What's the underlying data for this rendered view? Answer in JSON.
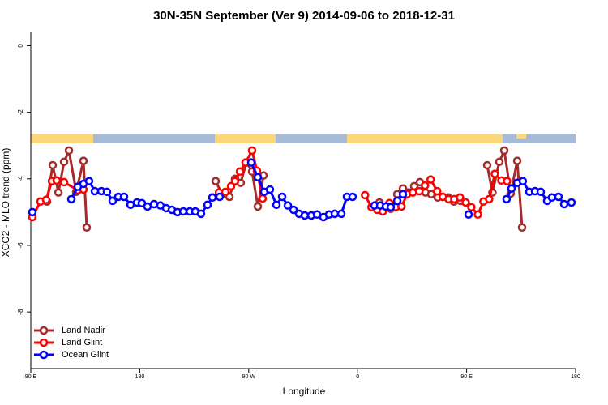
{
  "chart_data": {
    "type": "line",
    "title": "30N-35N September (Ver 9)   2014-09-06 to 2018-12-31",
    "x_label": "Longitude",
    "y_label": "XCO2 - MLO trend (ppm)",
    "xlim": [
      90,
      540
    ],
    "xticks": [
      {
        "value": 90,
        "label": "90 E"
      },
      {
        "value": 180,
        "label": "180"
      },
      {
        "value": 270,
        "label": "90 W"
      },
      {
        "value": 360,
        "label": "0"
      },
      {
        "value": 450,
        "label": "90 E"
      },
      {
        "value": 540,
        "label": "180"
      }
    ],
    "ylim": [
      -9.7,
      0.4
    ],
    "yticks": [
      0,
      -2,
      -4,
      -6,
      -8
    ],
    "legend": "bottom-left",
    "series": [
      {
        "name": "Land Nadir",
        "color": "#a52a2a",
        "x": [
          103.4,
          108.1,
          112.8,
          117.5,
          121.5,
          127.5,
          133.5,
          136.2,
          null,
          242.7,
          248.0,
          254.1,
          258.7,
          263.4,
          268.1,
          272.8,
          277.5,
          282.2,
          null,
          378.0,
          382.7,
          387.3,
          392.7,
          397.4,
          402.0,
          406.7,
          411.4,
          416.1,
          420.8,
          426.1,
          430.2,
          434.8,
          439.5,
          444.9,
          null,
          467.0,
          471.3,
          477.0,
          481.1,
          486.4,
          491.8,
          495.8
        ],
        "values": [
          -4.68,
          -3.59,
          -4.41,
          -3.49,
          -3.15,
          -4.39,
          -3.46,
          -5.46,
          null,
          -4.07,
          -4.46,
          -4.54,
          -4.0,
          -4.12,
          -3.51,
          -3.78,
          -4.83,
          -3.9,
          null,
          -4.71,
          -4.88,
          -4.9,
          -4.46,
          -4.29,
          -4.41,
          -4.22,
          -4.1,
          -4.41,
          -4.46,
          -4.56,
          -4.54,
          -4.56,
          -4.68,
          -4.66,
          null,
          -3.59,
          -4.41,
          -3.49,
          -3.15,
          -4.44,
          -3.46,
          -5.46
        ]
      },
      {
        "name": "Land Glint",
        "color": "#ff0000",
        "x": [
          91.3,
          98.0,
          102.7,
          107.4,
          111.4,
          117.5,
          128.8,
          133.5,
          null,
          240.0,
          245.4,
          250.7,
          255.4,
          258.7,
          262.8,
          267.4,
          272.8,
          276.8,
          281.5,
          null,
          366.1,
          371.4,
          376.1,
          380.8,
          386.2,
          391.5,
          396.2,
          400.9,
          405.6,
          410.9,
          415.6,
          420.3,
          425.7,
          430.4,
          435.1,
          439.8,
          444.5,
          449.2,
          453.9,
          459.3,
          463.9,
          468.6,
          473.3,
          478.7,
          483.4
        ],
        "values": [
          -5.15,
          -4.68,
          -4.63,
          -4.07,
          -4.05,
          -4.1,
          -4.34,
          -4.32,
          null,
          -4.56,
          -4.41,
          -4.39,
          -4.22,
          -4.07,
          -3.78,
          -3.51,
          -3.15,
          -3.76,
          -4.59,
          null,
          -4.49,
          -4.85,
          -4.93,
          -4.98,
          -4.73,
          -4.85,
          -4.83,
          -4.46,
          -4.41,
          -4.37,
          -4.2,
          -4.02,
          -4.37,
          -4.54,
          -4.61,
          -4.61,
          -4.56,
          -4.71,
          -4.85,
          -5.07,
          -4.68,
          -4.61,
          -3.85,
          -4.05,
          -4.07
        ]
      },
      {
        "name": "Ocean Glint",
        "color": "#0000ff",
        "x": [
          91.3,
          null,
          123.5,
          128.8,
          133.5,
          138.2,
          142.9,
          148.3,
          152.9,
          157.6,
          162.3,
          167.0,
          172.4,
          177.7,
          181.7,
          186.4,
          191.8,
          197.1,
          201.8,
          206.5,
          211.2,
          215.9,
          221.3,
          225.9,
          230.6,
          236.0,
          240.0,
          246.0,
          null,
          272.1,
          277.5,
          282.8,
          287.5,
          292.9,
          297.6,
          302.3,
          307.0,
          311.6,
          316.3,
          321.7,
          326.4,
          331.7,
          336.4,
          341.1,
          346.5,
          351.1,
          355.8,
          null,
          373.9,
          378.6,
          383.3,
          387.3,
          392.7,
          397.4,
          null,
          451.6,
          null,
          483.0,
          487.1,
          491.8,
          496.4,
          501.8,
          506.5,
          511.2,
          516.5,
          520.5,
          525.9,
          530.6,
          536.6
        ],
        "values": [
          -5.0,
          null,
          -4.61,
          -4.24,
          -4.15,
          -4.07,
          -4.37,
          -4.37,
          -4.39,
          -4.66,
          -4.54,
          -4.54,
          -4.78,
          -4.71,
          -4.73,
          -4.83,
          -4.76,
          -4.8,
          -4.88,
          -4.93,
          -5.0,
          -4.98,
          -4.98,
          -4.98,
          -5.05,
          -4.78,
          -4.56,
          -4.54,
          null,
          -3.51,
          -3.95,
          -4.39,
          -4.32,
          -4.78,
          -4.54,
          -4.8,
          -4.93,
          -5.05,
          -5.1,
          -5.1,
          -5.07,
          -5.15,
          -5.07,
          -5.05,
          -5.05,
          -4.54,
          -4.54,
          null,
          -4.8,
          -4.8,
          -4.83,
          -4.85,
          -4.66,
          -4.46,
          null,
          -5.07,
          null,
          -4.61,
          -4.29,
          -4.12,
          -4.07,
          -4.39,
          -4.37,
          -4.39,
          -4.66,
          -4.56,
          -4.54,
          -4.76,
          -4.71
        ]
      }
    ]
  }
}
